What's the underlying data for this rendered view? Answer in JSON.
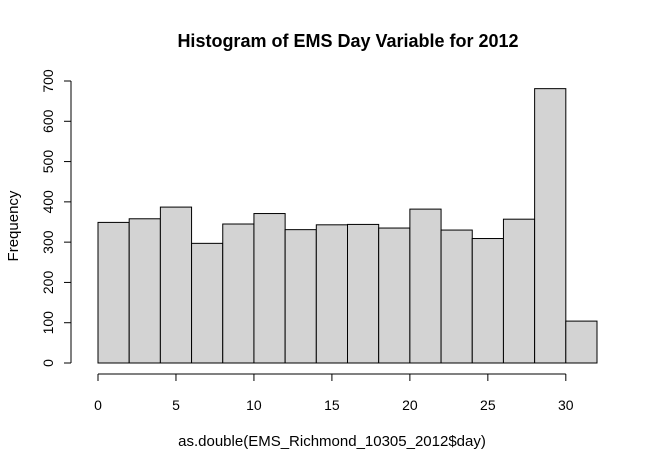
{
  "chart_data": {
    "type": "bar",
    "title": "Histogram of EMS Day Variable for 2012",
    "xlabel": "as.double(EMS_Richmond_10305_2012$day)",
    "ylabel": "Frequency",
    "xlim": [
      0,
      32
    ],
    "ylim": [
      0,
      700
    ],
    "bin_edges": [
      0,
      2,
      4,
      6,
      8,
      10,
      12,
      14,
      16,
      18,
      20,
      22,
      24,
      26,
      28,
      30,
      32
    ],
    "values": [
      349,
      358,
      387,
      297,
      345,
      371,
      331,
      343,
      344,
      335,
      382,
      330,
      309,
      357,
      681,
      104
    ],
    "x_ticks": [
      0,
      5,
      10,
      15,
      20,
      25,
      30
    ],
    "x_tick_labels": [
      "0",
      "5",
      "10",
      "15",
      "20",
      "25",
      "30"
    ],
    "y_ticks": [
      0,
      100,
      200,
      300,
      400,
      500,
      600,
      700
    ],
    "y_tick_labels": [
      "0",
      "100",
      "200",
      "300",
      "400",
      "500",
      "600",
      "700"
    ],
    "grid": false,
    "legend": "none",
    "colors": {
      "bar_fill": "#d3d3d3",
      "bar_stroke": "#000000",
      "axis": "#000000",
      "background": "#ffffff"
    }
  }
}
